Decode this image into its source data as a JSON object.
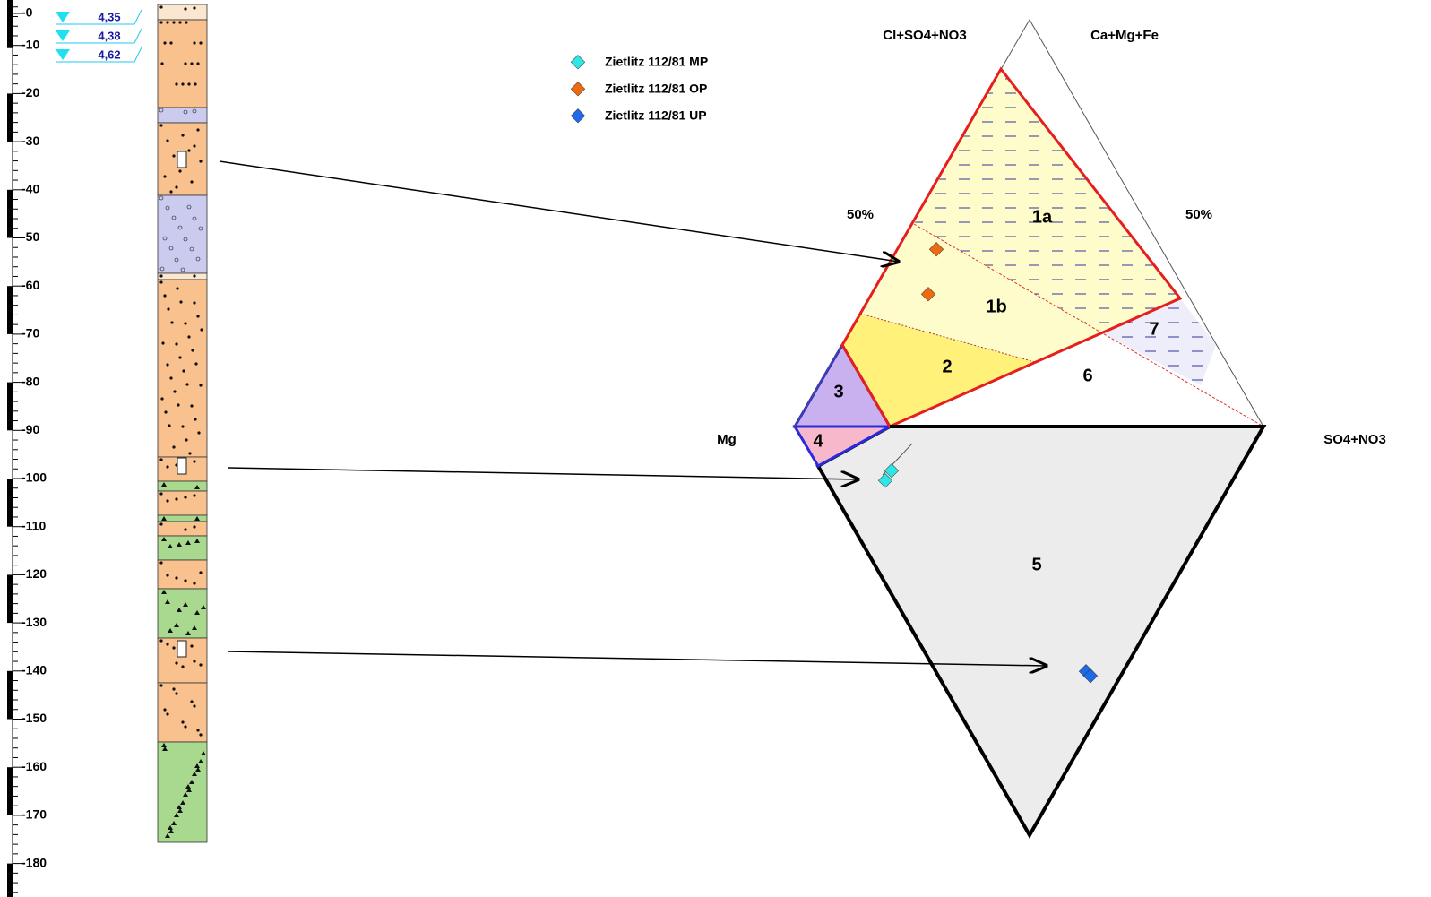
{
  "depth_axis": {
    "labels": [
      "-0",
      "-10",
      "-20",
      "-30",
      "-40",
      "-50",
      "-60",
      "-70",
      "-80",
      "-90",
      "-100",
      "-110",
      "-120",
      "-130",
      "-140",
      "-150",
      "-160",
      "-170",
      "-180"
    ]
  },
  "water_levels": [
    "4,35",
    "4,38",
    "4,62"
  ],
  "legend": [
    "Zietlitz 112/81 MP",
    "Zietlitz 112/81 OP",
    "Zietlitz 112/81 UP"
  ],
  "diagram": {
    "corner_labels": {
      "top_left": "Cl+SO4+NO3",
      "top_right": "Ca+Mg+Fe",
      "left": "Mg",
      "right": "SO4+NO3"
    },
    "percent_labels": [
      "50%",
      "50%"
    ],
    "regions": [
      "1a",
      "1b",
      "2",
      "3",
      "4",
      "5",
      "6",
      "7"
    ]
  }
}
